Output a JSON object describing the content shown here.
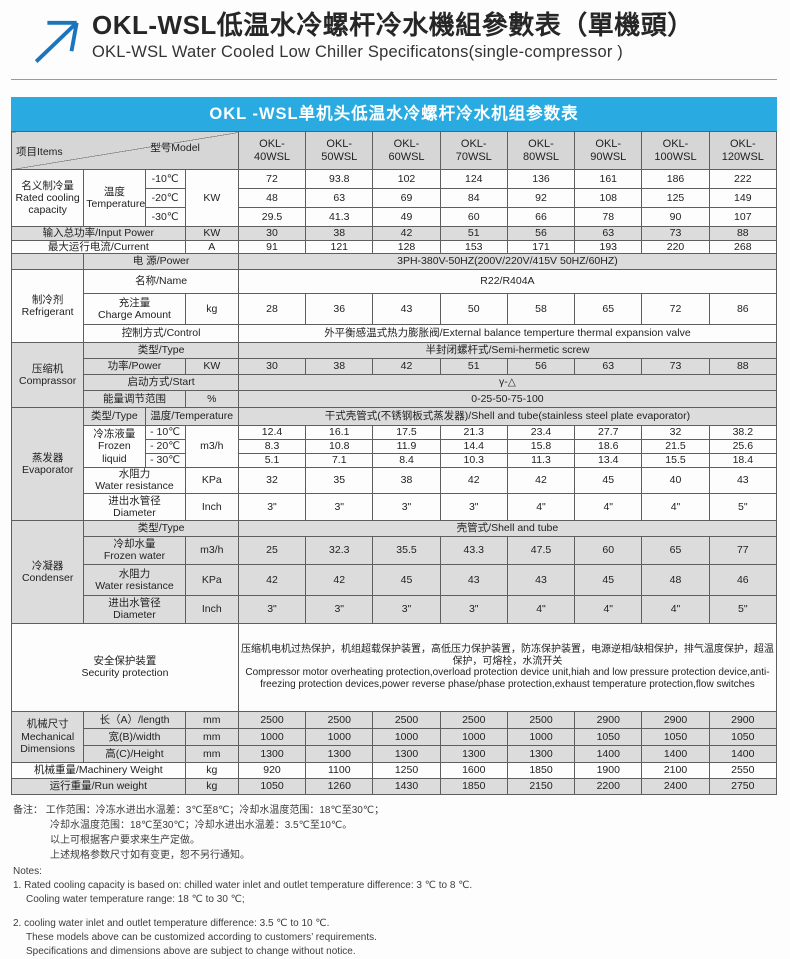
{
  "page_title": {
    "zh": "OKL-WSL低温水冷螺杆冷水機組參數表（單機頭）",
    "en": "OKL-WSL Water Cooled Low Chiller Specificatons(single-compressor )"
  },
  "colors": {
    "accent_blue": "#29abe2",
    "row_gray": "#dcdcdc"
  },
  "table": {
    "banner": "OKL -WSL单机头低温水冷螺杆冷水机组参数表",
    "corner": {
      "items": "项目Items",
      "model": "型号Model"
    },
    "models": [
      "OKL-\n40WSL",
      "OKL-\n50WSL",
      "OKL-\n60WSL",
      "OKL-\n70WSL",
      "OKL-\n80WSL",
      "OKL-\n90WSL",
      "OKL-\n100WSL",
      "OKL-\n120WSL"
    ]
  },
  "specs": {
    "capacity": {
      "label": "名义制冷量\nRated cooling\ncapacity",
      "temp_label": "温度\nTemperature",
      "unit": "KW",
      "t10": {
        "temp": "-10℃",
        "values": [
          72,
          93.8,
          102,
          124,
          136,
          161,
          186,
          222
        ]
      },
      "t20": {
        "temp": "-20℃",
        "values": [
          48,
          63,
          69,
          84,
          92,
          108,
          125,
          149
        ]
      },
      "t30": {
        "temp": "-30℃",
        "values": [
          29.5,
          41.3,
          49,
          60,
          66,
          78,
          90,
          107
        ]
      }
    },
    "input_power": {
      "label": "输入总功率/Input Power",
      "unit": "KW",
      "values": [
        30,
        38,
        42,
        51,
        56,
        63,
        73,
        88
      ]
    },
    "current": {
      "label": "最大运行电流/Current",
      "unit": "A",
      "values": [
        91,
        121,
        128,
        153,
        171,
        193,
        220,
        268
      ]
    },
    "power_supply": {
      "label": "电    源/Power",
      "value": "3PH-380V-50HZ(200V/220V/415V  50HZ/60HZ)"
    },
    "refrigerant": {
      "label": "制冷剂\nRefrigerant",
      "name": {
        "label": "名称/Name",
        "value": "R22/R404A"
      },
      "charge": {
        "label": "充注量\nCharge Amount",
        "unit": "kg",
        "values": [
          28,
          36,
          43,
          50,
          58,
          65,
          72,
          86
        ]
      },
      "control": {
        "label": "控制方式/Control",
        "value": "外平衡感温式热力膨胀阀/External balance temperture thermal expansion valve"
      }
    },
    "compressor": {
      "label": "压缩机\nComprassor",
      "type": {
        "label": "类型/Type",
        "value": "半封闭螺杆式/Semi-hermetic screw"
      },
      "power": {
        "label": "功率/Power",
        "unit": "KW",
        "values": [
          30,
          38,
          42,
          51,
          56,
          63,
          73,
          88
        ]
      },
      "start": {
        "label": "启动方式/Start",
        "value": "γ-△"
      },
      "energy": {
        "label": "能量调节范围",
        "unit": "%",
        "value": "0-25-50-75-100"
      }
    },
    "evaporator": {
      "label": "蒸发器\nEvaporator",
      "type": {
        "label": "类型/Type",
        "temp_label": "温度/Temperature",
        "value": "干式壳管式(不锈钢板式蒸发器)/Shell and tube(stainless steel plate evaporator)"
      },
      "frozen": {
        "label": "冷冻液量\nFrozen liquid",
        "unit": "m3/h",
        "t10": {
          "temp": "- 10℃",
          "values": [
            12.4,
            16.1,
            17.5,
            21.3,
            23.4,
            27.7,
            32,
            38.2
          ]
        },
        "t20": {
          "temp": "- 20℃",
          "values": [
            8.3,
            10.8,
            11.9,
            14.4,
            15.8,
            18.6,
            21.5,
            25.6
          ]
        },
        "t30": {
          "temp": "- 30℃",
          "values": [
            5.1,
            7.1,
            8.4,
            10.3,
            11.3,
            13.4,
            15.5,
            18.4
          ]
        }
      },
      "resistance": {
        "label": "水阻力\nWater resistance",
        "unit": "KPa",
        "values": [
          32,
          35,
          38,
          42,
          42,
          45,
          40,
          43
        ]
      },
      "diameter": {
        "label": "进出水管径\nDiameter",
        "unit": "Inch",
        "values": [
          "3\"",
          "3\"",
          "3\"",
          "3\"",
          "4\"",
          "4\"",
          "4\"",
          "5\""
        ]
      }
    },
    "condenser": {
      "label": "冷凝器\nCondenser",
      "type": {
        "label": "类型/Type",
        "value": "壳管式/Shell and tube"
      },
      "water": {
        "label": "冷却水量\nFrozen water",
        "unit": "m3/h",
        "values": [
          25,
          32.3,
          35.5,
          43.3,
          47.5,
          60,
          65,
          77
        ]
      },
      "resistance": {
        "label": "水阻力\nWater resistance",
        "unit": "KPa",
        "values": [
          42,
          42,
          45,
          43,
          43,
          45,
          48,
          46
        ]
      },
      "diameter": {
        "label": "进出水管径\nDiameter",
        "unit": "Inch",
        "values": [
          "3\"",
          "3\"",
          "3\"",
          "3\"",
          "4\"",
          "4\"",
          "4\"",
          "5\""
        ]
      }
    },
    "security": {
      "label": "安全保护装置\nSecurity protection",
      "value": "压缩机电机过热保护，机组超载保护装置，高低压力保护装置，防冻保护装置，电源逆相/缺相保护，排气温度保护，超温保护，可熔栓，水流开关\nCompressor motor overheating protection,overload protection device unit,hiah and low pressure protection device,anti-freezing protection devices,power reverse phase/phase protection,exhaust temperature protection,flow switches"
    },
    "mechanical": {
      "label": "机械尺寸\nMechanical\nDimensions",
      "length": {
        "label": "长（A）/length",
        "unit": "mm",
        "values": [
          2500,
          2500,
          2500,
          2500,
          2500,
          2900,
          2900,
          2900
        ]
      },
      "width": {
        "label": "宽(B)/width",
        "unit": "mm",
        "values": [
          1000,
          1000,
          1000,
          1000,
          1000,
          1050,
          1050,
          1050
        ]
      },
      "height": {
        "label": "高(C)/Height",
        "unit": "mm",
        "values": [
          1300,
          1300,
          1300,
          1300,
          1300,
          1400,
          1400,
          1400
        ]
      }
    },
    "machinery_weight": {
      "label": "机械重量/Machinery Weight",
      "unit": "kg",
      "values": [
        920,
        1100,
        1250,
        1600,
        1850,
        1900,
        2100,
        2550
      ]
    },
    "run_weight": {
      "label": "运行重量/Run weight",
      "unit": "kg",
      "values": [
        1050,
        1260,
        1430,
        1850,
        2150,
        2200,
        2400,
        2750
      ]
    }
  },
  "notes": {
    "zh": [
      "备注：  工作范围：冷冻水进出水温差：3℃至8℃；冷却水温度范围：18℃至30℃；",
      "冷却水温度范围：18℃至30℃；冷却水进出水温差：3.5℃至10℃。",
      "以上可根据客户要求来生产定做。",
      "上述规格参数尺寸如有变更，恕不另行通知。"
    ],
    "en_title": "Notes:",
    "en": [
      "1. Rated cooling capacity is based on: chilled water inlet and outlet temperature  difference: 3 ℃ to 8 ℃.",
      "Cooling water temperature  range: 18 ℃ to 30 ℃;",
      "2. cooling water inlet and outlet temperature  difference: 3.5 ℃ to 10 ℃.",
      "These models above can be customized according to customers’   requirements.",
      "Specifications and dimensions above are subject to change without notice."
    ]
  }
}
